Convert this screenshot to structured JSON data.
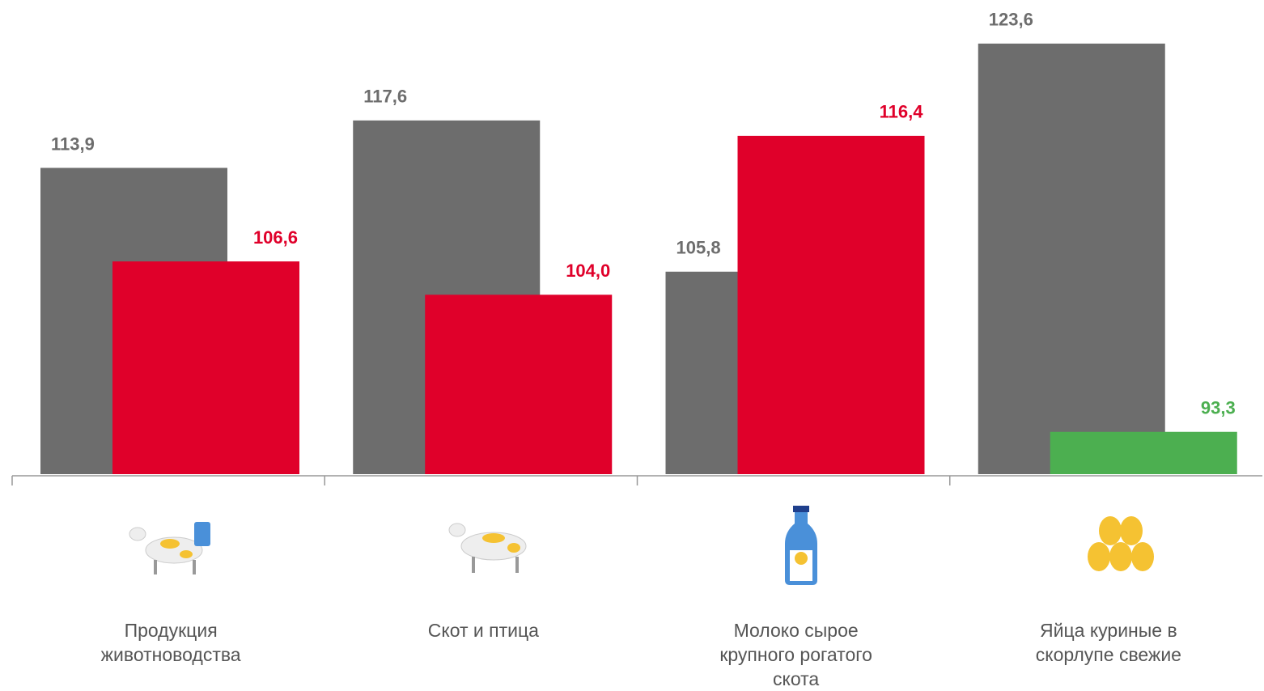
{
  "chart_data": {
    "type": "bar",
    "categories": [
      "Продукция животноводства",
      "Скот и птица",
      "Молоко сырое крупного рогатого скота",
      "Яйца куриные в скорлупе свежие"
    ],
    "series": [
      {
        "color": "#6d6d6d",
        "values": [
          113.9,
          117.6,
          105.8,
          123.6
        ],
        "value_labels": [
          "113,9",
          "117,6",
          "105,8",
          "123,6"
        ]
      },
      {
        "colors": [
          "#e0002a",
          "#e0002a",
          "#e0002a",
          "#4caf50"
        ],
        "values": [
          106.6,
          104.0,
          116.4,
          93.3
        ],
        "value_labels": [
          "106,6",
          "104,0",
          "116,4",
          "93,3"
        ]
      }
    ],
    "ylim": [
      90,
      127
    ]
  }
}
